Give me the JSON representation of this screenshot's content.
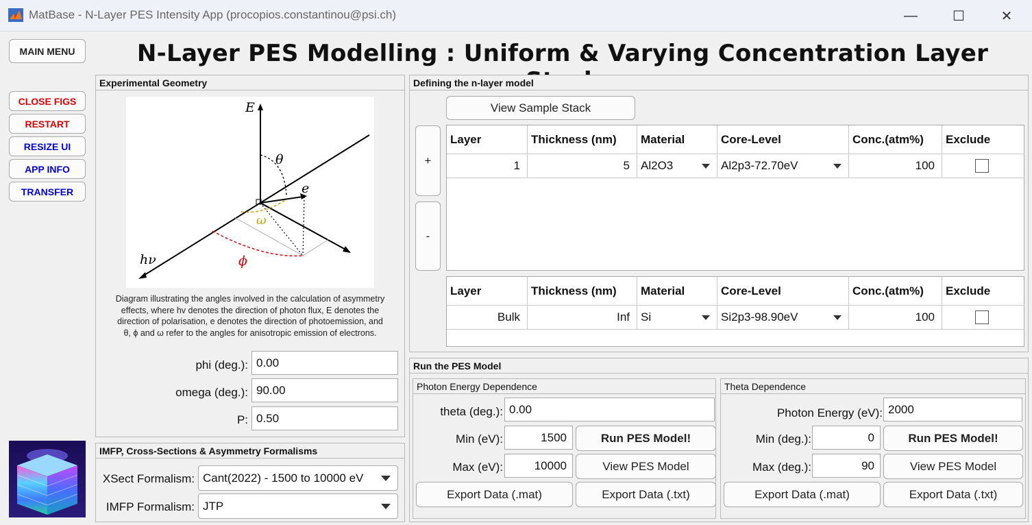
{
  "window": {
    "title": "MatBase - N-Layer PES Intensity App (procopios.constantinou@psi.ch)",
    "minimize": "—",
    "maximize": "☐",
    "close": "✕"
  },
  "heading": "N-Layer PES Modelling : Uniform & Varying Concentration Layer Stack",
  "sidebar": {
    "main_menu": "MAIN MENU",
    "close_figs": "CLOSE FIGS",
    "restart": "RESTART",
    "resize_ui": "RESIZE UI",
    "app_info": "APP INFO",
    "transfer": "TRANSFER"
  },
  "geometry": {
    "title": "Experimental Geometry",
    "diagram_labels": {
      "E": "E",
      "theta": "θ",
      "e": "e",
      "omega": "ω",
      "hv": "hν",
      "phi": "ϕ"
    },
    "caption": [
      "Diagram illustrating the angles involved in the calculation of asymmetry",
      "effects, where hv denotes the direction of photon flux, E denotes the",
      "direction of polarisation, e denotes the direction of photoemission, and",
      "θ, ϕ and ω refer to the angles for anisotropic emission of electrons."
    ],
    "phi_label": "phi (deg.):",
    "phi_value": "0.00",
    "omega_label": "omega (deg.):",
    "omega_value": "90.00",
    "p_label": "P:",
    "p_value": "0.50"
  },
  "formalisms": {
    "title": "IMFP, Cross-Sections & Asymmetry Formalisms",
    "xsect_label": "XSect Formalism:",
    "xsect_value": "Cant(2022) - 1500 to 10000 eV",
    "imfp_label": "IMFP Formalism:",
    "imfp_value": "JTP"
  },
  "model": {
    "title": "Defining the n-layer model",
    "view_stack": "View Sample Stack",
    "add": "+",
    "remove": "-",
    "headers": [
      "Layer",
      "Thickness (nm)",
      "Material",
      "Core-Level",
      "Conc.(atm%)",
      "Exclude"
    ],
    "layers": [
      {
        "layer": "1",
        "thickness": "5",
        "material": "Al2O3",
        "core": "Al2p3-72.70eV",
        "conc": "100"
      }
    ],
    "bulk": {
      "layer": "Bulk",
      "thickness": "Inf",
      "material": "Si",
      "core": "Si2p3-98.90eV",
      "conc": "100"
    }
  },
  "run": {
    "title": "Run the PES Model",
    "photon": {
      "title": "Photon Energy Dependence",
      "theta_label": "theta (deg.):",
      "theta_value": "0.00",
      "min_label": "Min (eV):",
      "min_value": "1500",
      "max_label": "Max (eV):",
      "max_value": "10000",
      "run": "Run PES Model!",
      "view": "View PES Model",
      "export_mat": "Export Data (.mat)",
      "export_txt": "Export Data (.txt)"
    },
    "theta": {
      "title": "Theta Dependence",
      "energy_label": "Photon Energy (eV):",
      "energy_value": "2000",
      "min_label": "Min (deg.):",
      "min_value": "0",
      "max_label": "Max (deg.):",
      "max_value": "90",
      "run": "Run PES Model!",
      "view": "View PES Model",
      "export_mat": "Export Data (.mat)",
      "export_txt": "Export Data (.txt)"
    }
  }
}
